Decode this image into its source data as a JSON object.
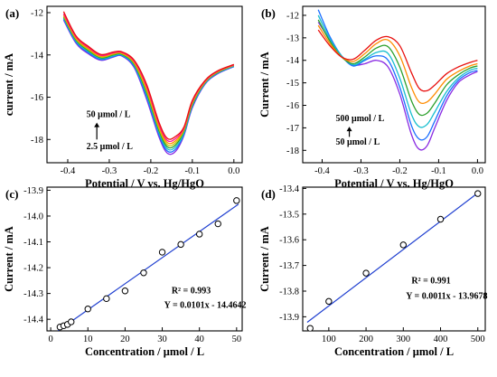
{
  "chart_data": [
    {
      "panel": "(a)",
      "type": "line",
      "xlabel": "Potential / V vs. Hg/HgO",
      "ylabel": "current / mA",
      "xlim": [
        -0.45,
        0.02
      ],
      "ylim": [
        -19.1,
        -11.7
      ],
      "xticks": [
        "-0.4",
        "-0.3",
        "-0.2",
        "-0.1",
        "0.0"
      ],
      "yticks": [
        "-12",
        "-14",
        "-16",
        "-18"
      ],
      "xtick_values": [
        -0.4,
        -0.3,
        -0.2,
        -0.1,
        0.0
      ],
      "ytick_values": [
        -12,
        -14,
        -16,
        -18
      ],
      "annotations": [
        {
          "text": "50 μmol / L",
          "x": -0.355,
          "y": -16.95
        },
        {
          "text": "2.5 μmol / L",
          "x": -0.355,
          "y": -18.45
        }
      ],
      "arrow": {
        "x": -0.33,
        "y_from": -18.0,
        "y_to": -17.2
      },
      "series": [
        {
          "color": "#8a2be2",
          "x": [
            -0.41,
            -0.38,
            -0.35,
            -0.32,
            -0.29,
            -0.27,
            -0.24,
            -0.21,
            -0.18,
            -0.16,
            -0.14,
            -0.12,
            -0.1,
            -0.07,
            -0.04,
            0.0
          ],
          "y": [
            -12.35,
            -13.45,
            -13.95,
            -14.25,
            -14.1,
            -14.05,
            -14.6,
            -16.1,
            -17.9,
            -18.65,
            -18.55,
            -17.8,
            -16.5,
            -15.4,
            -14.9,
            -14.55
          ]
        },
        {
          "color": "#1a6dff",
          "x": [
            -0.41,
            -0.38,
            -0.35,
            -0.32,
            -0.29,
            -0.27,
            -0.24,
            -0.21,
            -0.18,
            -0.16,
            -0.14,
            -0.12,
            -0.1,
            -0.07,
            -0.04,
            0.0
          ],
          "y": [
            -12.3,
            -13.4,
            -13.9,
            -14.22,
            -14.08,
            -14.03,
            -14.55,
            -16.0,
            -17.8,
            -18.55,
            -18.45,
            -17.75,
            -16.45,
            -15.38,
            -14.88,
            -14.55
          ]
        },
        {
          "color": "#17becf",
          "x": [
            -0.41,
            -0.38,
            -0.35,
            -0.32,
            -0.29,
            -0.27,
            -0.24,
            -0.21,
            -0.18,
            -0.16,
            -0.14,
            -0.12,
            -0.1,
            -0.07,
            -0.04,
            0.0
          ],
          "y": [
            -12.25,
            -13.35,
            -13.85,
            -14.18,
            -14.04,
            -14.0,
            -14.5,
            -15.9,
            -17.7,
            -18.45,
            -18.35,
            -17.7,
            -16.4,
            -15.35,
            -14.86,
            -14.52
          ]
        },
        {
          "color": "#2ca02c",
          "x": [
            -0.41,
            -0.38,
            -0.35,
            -0.32,
            -0.29,
            -0.27,
            -0.24,
            -0.21,
            -0.18,
            -0.16,
            -0.14,
            -0.12,
            -0.1,
            -0.07,
            -0.04,
            0.0
          ],
          "y": [
            -12.2,
            -13.3,
            -13.8,
            -14.14,
            -14.0,
            -13.97,
            -14.45,
            -15.8,
            -17.6,
            -18.35,
            -18.25,
            -17.6,
            -16.35,
            -15.32,
            -14.84,
            -14.5
          ]
        },
        {
          "color": "#c8c800",
          "x": [
            -0.41,
            -0.38,
            -0.35,
            -0.32,
            -0.29,
            -0.27,
            -0.24,
            -0.21,
            -0.18,
            -0.16,
            -0.14,
            -0.12,
            -0.1,
            -0.07,
            -0.04,
            0.0
          ],
          "y": [
            -12.15,
            -13.25,
            -13.75,
            -14.1,
            -13.96,
            -13.94,
            -14.4,
            -15.7,
            -17.5,
            -18.25,
            -18.15,
            -17.55,
            -16.3,
            -15.3,
            -14.82,
            -14.5
          ]
        },
        {
          "color": "#ff8c00",
          "x": [
            -0.41,
            -0.38,
            -0.35,
            -0.32,
            -0.29,
            -0.27,
            -0.24,
            -0.21,
            -0.18,
            -0.16,
            -0.14,
            -0.12,
            -0.1,
            -0.07,
            -0.04,
            0.0
          ],
          "y": [
            -12.1,
            -13.2,
            -13.7,
            -14.06,
            -13.93,
            -13.91,
            -14.35,
            -15.6,
            -17.4,
            -18.15,
            -18.05,
            -17.5,
            -16.25,
            -15.28,
            -14.8,
            -14.48
          ]
        },
        {
          "color": "#ff1493",
          "x": [
            -0.41,
            -0.38,
            -0.35,
            -0.32,
            -0.29,
            -0.27,
            -0.24,
            -0.21,
            -0.18,
            -0.16,
            -0.14,
            -0.12,
            -0.1,
            -0.07,
            -0.04,
            0.0
          ],
          "y": [
            -12.05,
            -13.15,
            -13.65,
            -14.02,
            -13.9,
            -13.88,
            -14.3,
            -15.5,
            -17.3,
            -18.05,
            -17.95,
            -17.45,
            -16.2,
            -15.25,
            -14.78,
            -14.47
          ]
        },
        {
          "color": "#e8110f",
          "x": [
            -0.41,
            -0.38,
            -0.35,
            -0.32,
            -0.29,
            -0.27,
            -0.24,
            -0.21,
            -0.18,
            -0.16,
            -0.14,
            -0.12,
            -0.1,
            -0.07,
            -0.04,
            0.0
          ],
          "y": [
            -11.95,
            -13.1,
            -13.6,
            -13.98,
            -13.86,
            -13.85,
            -14.25,
            -15.4,
            -17.2,
            -17.95,
            -17.85,
            -17.4,
            -16.15,
            -15.22,
            -14.76,
            -14.45
          ]
        }
      ]
    },
    {
      "panel": "(b)",
      "type": "line",
      "xlabel": "Potential / V vs. Hg/HgO",
      "ylabel": "Current / mA",
      "xlim": [
        -0.45,
        0.02
      ],
      "ylim": [
        -18.55,
        -11.6
      ],
      "xticks": [
        "-0.4",
        "-0.3",
        "-0.2",
        "-0.1",
        "0.0"
      ],
      "yticks": [
        "-12",
        "-13",
        "-14",
        "-15",
        "-16",
        "-17",
        "-18"
      ],
      "xtick_values": [
        -0.4,
        -0.3,
        -0.2,
        -0.1,
        0.0
      ],
      "ytick_values": [
        -12,
        -13,
        -14,
        -15,
        -16,
        -17,
        -18
      ],
      "annotations": [
        {
          "text": "500 μmol / L",
          "x": -0.365,
          "y": -16.7
        },
        {
          "text": "50 μmol / L",
          "x": -0.365,
          "y": -17.75
        }
      ],
      "arrow": {
        "x": -0.33,
        "y_from": -17.4,
        "y_to": -16.95
      },
      "series": [
        {
          "color": "#8a2be2",
          "x": [
            -0.41,
            -0.38,
            -0.35,
            -0.32,
            -0.29,
            -0.26,
            -0.23,
            -0.2,
            -0.17,
            -0.15,
            -0.13,
            -0.11,
            -0.08,
            -0.05,
            -0.02,
            0.0
          ],
          "y": [
            -12.3,
            -13.1,
            -13.8,
            -14.2,
            -14.15,
            -14.0,
            -14.3,
            -15.5,
            -17.3,
            -17.95,
            -17.8,
            -17.0,
            -15.8,
            -15.0,
            -14.65,
            -14.5
          ]
        },
        {
          "color": "#1a6dff",
          "x": [
            -0.41,
            -0.38,
            -0.35,
            -0.32,
            -0.29,
            -0.26,
            -0.23,
            -0.2,
            -0.17,
            -0.15,
            -0.13,
            -0.11,
            -0.08,
            -0.05,
            -0.02,
            0.0
          ],
          "y": [
            -11.75,
            -12.95,
            -13.8,
            -14.25,
            -14.0,
            -13.8,
            -14.0,
            -15.2,
            -16.9,
            -17.5,
            -17.4,
            -16.7,
            -15.6,
            -14.9,
            -14.55,
            -14.45
          ]
        },
        {
          "color": "#17becf",
          "x": [
            -0.41,
            -0.38,
            -0.35,
            -0.32,
            -0.29,
            -0.26,
            -0.23,
            -0.2,
            -0.17,
            -0.15,
            -0.13,
            -0.11,
            -0.08,
            -0.05,
            -0.02,
            0.0
          ],
          "y": [
            -12.0,
            -13.05,
            -13.8,
            -14.2,
            -13.95,
            -13.65,
            -13.7,
            -14.8,
            -16.4,
            -16.95,
            -16.85,
            -16.3,
            -15.4,
            -14.8,
            -14.45,
            -14.35
          ]
        },
        {
          "color": "#2ca02c",
          "x": [
            -0.41,
            -0.38,
            -0.35,
            -0.32,
            -0.29,
            -0.26,
            -0.23,
            -0.2,
            -0.17,
            -0.15,
            -0.13,
            -0.11,
            -0.08,
            -0.05,
            -0.02,
            0.0
          ],
          "y": [
            -12.2,
            -13.15,
            -13.85,
            -14.15,
            -13.85,
            -13.45,
            -13.4,
            -14.3,
            -15.8,
            -16.4,
            -16.35,
            -15.9,
            -15.1,
            -14.65,
            -14.35,
            -14.25
          ]
        },
        {
          "color": "#ff8c00",
          "x": [
            -0.41,
            -0.38,
            -0.35,
            -0.32,
            -0.29,
            -0.26,
            -0.23,
            -0.2,
            -0.17,
            -0.15,
            -0.13,
            -0.11,
            -0.08,
            -0.05,
            -0.02,
            0.0
          ],
          "y": [
            -12.45,
            -13.25,
            -13.85,
            -14.05,
            -13.7,
            -13.25,
            -13.1,
            -13.8,
            -15.2,
            -15.85,
            -15.85,
            -15.5,
            -14.85,
            -14.5,
            -14.25,
            -14.15
          ]
        },
        {
          "color": "#e8110f",
          "x": [
            -0.41,
            -0.38,
            -0.35,
            -0.32,
            -0.29,
            -0.26,
            -0.23,
            -0.2,
            -0.17,
            -0.15,
            -0.13,
            -0.11,
            -0.08,
            -0.05,
            -0.02,
            0.0
          ],
          "y": [
            -12.65,
            -13.35,
            -13.85,
            -13.95,
            -13.55,
            -13.1,
            -12.95,
            -13.35,
            -14.55,
            -15.25,
            -15.35,
            -15.1,
            -14.6,
            -14.3,
            -14.1,
            -14.0
          ]
        }
      ]
    },
    {
      "panel": "(c)",
      "type": "scatter",
      "xlabel": "Concentration / μmol / L",
      "ylabel": "Current / mA",
      "xlim": [
        -1,
        51.5
      ],
      "ylim": [
        -14.445,
        -13.888
      ],
      "xticks": [
        "0",
        "10",
        "20",
        "30",
        "40",
        "50"
      ],
      "yticks": [
        "-13.9",
        "-14.0",
        "-14.1",
        "-14.2",
        "-14.3",
        "-14.4"
      ],
      "xtick_values": [
        0,
        10,
        20,
        30,
        40,
        50
      ],
      "ytick_values": [
        -13.9,
        -14.0,
        -14.1,
        -14.2,
        -14.3,
        -14.4
      ],
      "points": {
        "x": [
          2.5,
          3.5,
          4.5,
          5.5,
          10,
          15,
          20,
          25,
          30,
          35,
          40,
          45,
          50
        ],
        "y": [
          -14.43,
          -14.425,
          -14.42,
          -14.41,
          -14.36,
          -14.32,
          -14.29,
          -14.22,
          -14.14,
          -14.11,
          -14.07,
          -14.03,
          -13.94
        ]
      },
      "fit": {
        "slope": 0.0101,
        "intercept": -14.4642,
        "x_range": [
          2.0,
          50.5
        ],
        "color": "#1f3fd0"
      },
      "annotations": [
        {
          "text": "R² = 0.993",
          "x": 32.5,
          "y": -14.3
        },
        {
          "text": "Y = 0.0101x - 14.4642",
          "x": 30.5,
          "y": -14.355
        }
      ]
    },
    {
      "panel": "(d)",
      "type": "scatter",
      "xlabel": "Concentration / μmol / L",
      "ylabel": "Current / mA",
      "xlim": [
        30,
        520
      ],
      "ylim": [
        -13.955,
        -13.395
      ],
      "xticks": [
        "100",
        "200",
        "300",
        "400",
        "500"
      ],
      "yticks": [
        "-13.4",
        "-13.5",
        "-13.6",
        "-13.7",
        "-13.8",
        "-13.9"
      ],
      "xtick_values": [
        100,
        200,
        300,
        400,
        500
      ],
      "ytick_values": [
        -13.4,
        -13.5,
        -13.6,
        -13.7,
        -13.8,
        -13.9
      ],
      "points": {
        "x": [
          50,
          100,
          200,
          300,
          400,
          500
        ],
        "y": [
          -13.945,
          -13.84,
          -13.73,
          -13.62,
          -13.52,
          -13.42
        ]
      },
      "fit": {
        "slope": 0.0011,
        "intercept": -13.9678,
        "x_range": [
          42,
          505
        ],
        "color": "#1f3fd0"
      },
      "annotations": [
        {
          "text": "R² = 0.991",
          "x": 322,
          "y": -13.77
        },
        {
          "text": "Y = 0.0011x - 13.9678",
          "x": 307,
          "y": -13.83
        }
      ]
    }
  ]
}
